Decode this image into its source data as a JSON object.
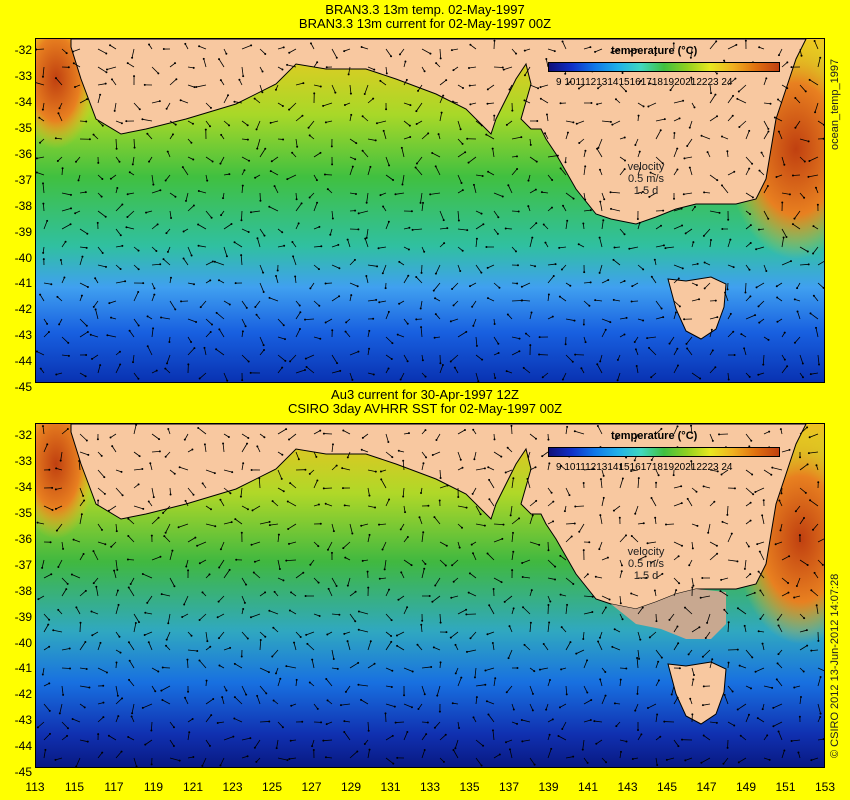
{
  "panels": [
    {
      "title1": "BRAN3.3 13m temp. 02-May-1997",
      "title2": "BRAN3.3 13m current for 02-May-1997 00Z",
      "side_label": "ocean_temp_1997"
    },
    {
      "title1": "Au3 current for 30-Apr-1997 12Z",
      "title2": "CSIRO 3day AVHRR SST for 02-May-1997 00Z",
      "side_label": "© CSIRO 2012  13-Jun-2012 14:07:28"
    }
  ],
  "colorbar": {
    "title": "temperature (°C)",
    "ticks": "9 1011121314151617181920212223 24"
  },
  "velocity": {
    "label": "velocity",
    "value": "0.5 m/s",
    "scale": "1.5 d"
  },
  "y_axis": [
    "-32",
    "-33",
    "-34",
    "-35",
    "-36",
    "-37",
    "-38",
    "-39",
    "-40",
    "-41",
    "-42",
    "-43",
    "-44",
    "-45"
  ],
  "x_axis": [
    "113",
    "115",
    "117",
    "119",
    "121",
    "123",
    "125",
    "127",
    "129",
    "131",
    "133",
    "135",
    "137",
    "139",
    "141",
    "143",
    "145",
    "147",
    "149",
    "151",
    "153"
  ],
  "colors": {
    "background": "#ffff00",
    "land": "#f8c8a0",
    "cold": "#1030c8",
    "warm": "#e07010"
  }
}
